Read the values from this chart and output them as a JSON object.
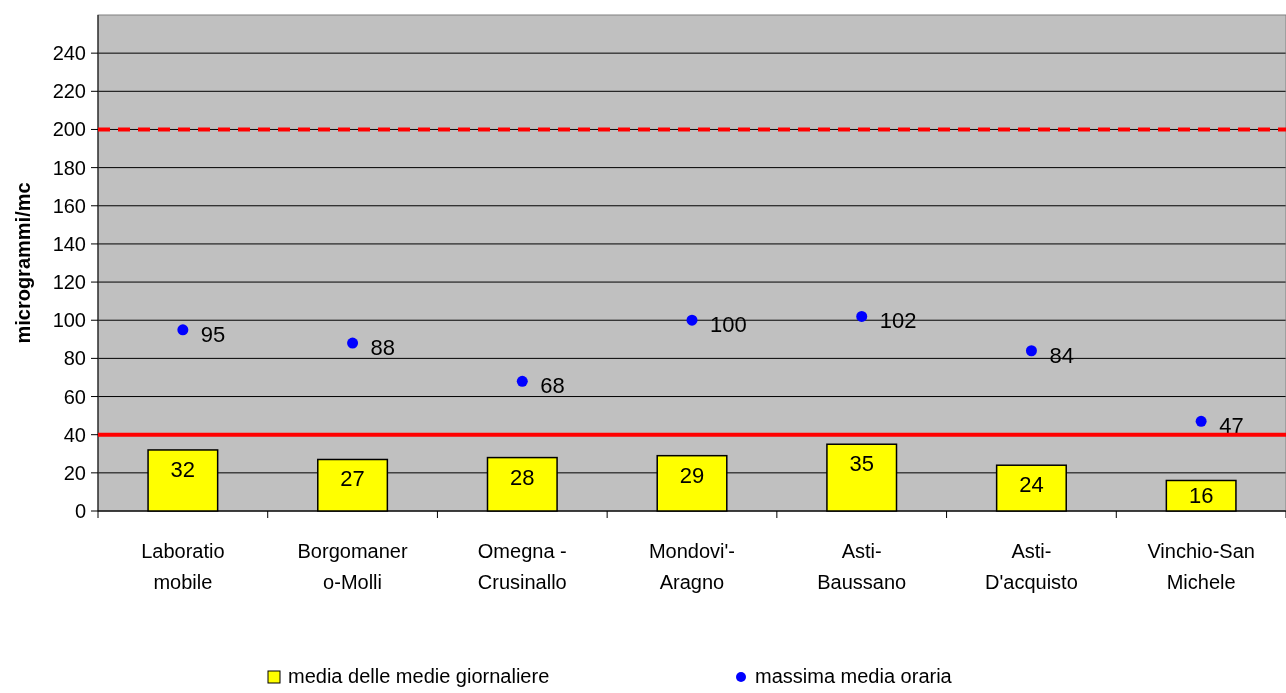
{
  "chart_data": {
    "type": "bar",
    "ylabel": "microgrammi/mc",
    "categories": [
      "Laboratio\nmobile",
      "Borgomaner\no-Molli",
      "Omegna -\nCrusinallo",
      "Mondovi'-\nAragno",
      "Asti-\nBaussano",
      "Asti-\nD'acquisto",
      "Vinchio-San\nMichele"
    ],
    "series": [
      {
        "name": "media delle medie giornaliere",
        "color": "#ffff00",
        "values": [
          32,
          27,
          28,
          29,
          35,
          24,
          16
        ]
      },
      {
        "name": "massima media oraria",
        "type": "scatter",
        "color": "#0000ff",
        "marker": "circle",
        "values": [
          95,
          88,
          68,
          100,
          102,
          84,
          47
        ]
      }
    ],
    "ylim": [
      0,
      260
    ],
    "yticks": [
      0,
      20,
      40,
      60,
      80,
      100,
      120,
      140,
      160,
      180,
      200,
      220,
      240
    ],
    "ref_lines": [
      {
        "axis": "y",
        "value": 40,
        "color": "#ff0000",
        "line_style": "solid"
      },
      {
        "axis": "y",
        "value": 200,
        "color": "#ff0000",
        "line_style": "dashed"
      }
    ],
    "grid": "y",
    "data_labels": true,
    "legend": "bottom"
  }
}
